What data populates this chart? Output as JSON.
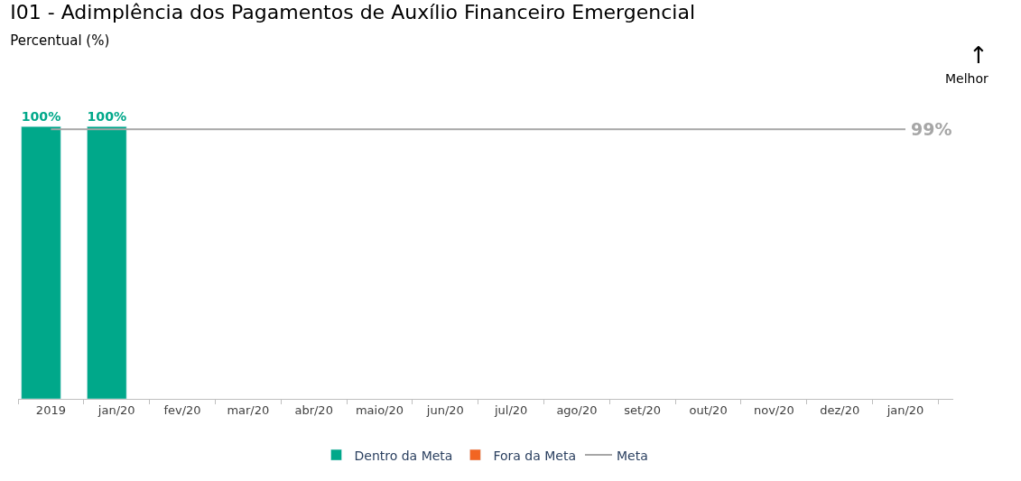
{
  "chart_data": {
    "type": "bar",
    "title": "I01 - Adimplência dos Pagamentos de Auxílio Financeiro Emergencial",
    "subtitle": "Percentual (%)",
    "categories": [
      "2019",
      "jan/20",
      "fev/20",
      "mar/20",
      "abr/20",
      "maio/20",
      "jun/20",
      "jul/20",
      "ago/20",
      "set/20",
      "out/20",
      "nov/20",
      "dez/20",
      "jan/20"
    ],
    "series": [
      {
        "name": "Dentro da Meta",
        "color": "#00a88a",
        "values": [
          100,
          100,
          null,
          null,
          null,
          null,
          null,
          null,
          null,
          null,
          null,
          null,
          null,
          null
        ],
        "value_labels": [
          "100%",
          "100%",
          null,
          null,
          null,
          null,
          null,
          null,
          null,
          null,
          null,
          null,
          null,
          null
        ]
      },
      {
        "name": "Fora da Meta",
        "color": "#f26522",
        "values": [
          null,
          null,
          null,
          null,
          null,
          null,
          null,
          null,
          null,
          null,
          null,
          null,
          null,
          null
        ]
      },
      {
        "name": "Meta",
        "type": "line",
        "color": "#a6a6a6",
        "values": [
          99,
          99,
          99,
          99,
          99,
          99,
          99,
          99,
          99,
          99,
          99,
          99,
          99,
          99
        ],
        "value_labels": [
          null,
          null,
          null,
          null,
          null,
          null,
          null,
          null,
          null,
          null,
          null,
          null,
          null,
          "99%"
        ]
      }
    ],
    "annotations": [
      "↑",
      "Melhor"
    ],
    "legend": "bottom",
    "tick_labels": "x"
  }
}
